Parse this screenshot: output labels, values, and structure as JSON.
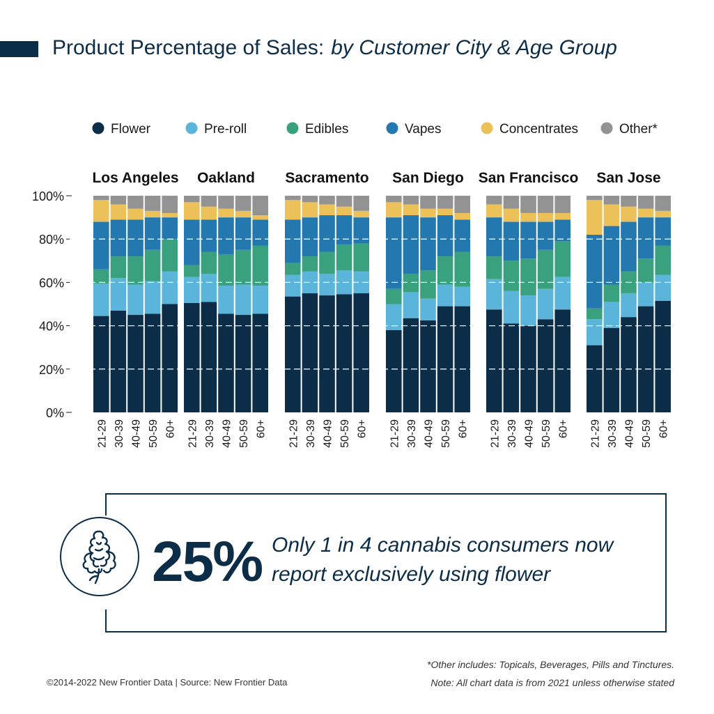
{
  "header": {
    "title": "Product Percentage of Sales:",
    "subtitle": "by Customer City & Age Group"
  },
  "chart_data": {
    "type": "bar",
    "stacked": true,
    "y_ticks": [
      "0%",
      "20%",
      "40%",
      "60%",
      "80%",
      "100%"
    ],
    "ylim": [
      0,
      100
    ],
    "grid": "dashed horizontal lines at 20% intervals",
    "legend_position": "top",
    "series": [
      {
        "name": "Flower",
        "color": "#0c2d48"
      },
      {
        "name": "Pre-roll",
        "color": "#5bb5db"
      },
      {
        "name": "Edibles",
        "color": "#3aa17e"
      },
      {
        "name": "Vapes",
        "color": "#2478b0"
      },
      {
        "name": "Concentrates",
        "color": "#edc15a"
      },
      {
        "name": "Other*",
        "color": "#939393"
      }
    ],
    "groups": [
      {
        "name": "Los Angeles",
        "bars": [
          {
            "label": "21-29",
            "values": [
              44.5,
              15,
              6.5,
              22,
              10,
              2
            ]
          },
          {
            "label": "30-39",
            "values": [
              47,
              15,
              10,
              17,
              7,
              4
            ]
          },
          {
            "label": "40-49",
            "values": [
              45,
              14,
              13,
              17,
              5,
              6
            ]
          },
          {
            "label": "50-59",
            "values": [
              45.5,
              15,
              14.5,
              15,
              3,
              7
            ]
          },
          {
            "label": "60+",
            "values": [
              50,
              15,
              15,
              10,
              2,
              8
            ]
          }
        ]
      },
      {
        "name": "Oakland",
        "bars": [
          {
            "label": "21-29",
            "values": [
              50.5,
              12,
              5.5,
              21,
              8,
              3
            ]
          },
          {
            "label": "30-39",
            "values": [
              51,
              13,
              10,
              15,
              6,
              5
            ]
          },
          {
            "label": "40-49",
            "values": [
              45.5,
              13,
              14.5,
              17,
              4,
              6
            ]
          },
          {
            "label": "50-59",
            "values": [
              45,
              14,
              16,
              15,
              3,
              7
            ]
          },
          {
            "label": "60+",
            "values": [
              45.5,
              13,
              18.5,
              12,
              2,
              9
            ]
          }
        ]
      },
      {
        "name": "Sacramento",
        "bars": [
          {
            "label": "21-29",
            "values": [
              53.5,
              10,
              5.5,
              20,
              9,
              2
            ]
          },
          {
            "label": "30-39",
            "values": [
              55,
              10,
              7,
              18,
              7,
              3
            ]
          },
          {
            "label": "40-49",
            "values": [
              54,
              10,
              10,
              17,
              5,
              4
            ]
          },
          {
            "label": "50-59",
            "values": [
              54.5,
              11,
              12,
              13.5,
              4,
              5
            ]
          },
          {
            "label": "60+",
            "values": [
              55,
              10,
              13,
              12,
              3,
              7
            ]
          }
        ]
      },
      {
        "name": "San Diego",
        "bars": [
          {
            "label": "21-29",
            "values": [
              38,
              12,
              7,
              33,
              7,
              3
            ]
          },
          {
            "label": "30-39",
            "values": [
              43.5,
              12,
              8.5,
              27,
              5,
              4
            ]
          },
          {
            "label": "40-49",
            "values": [
              42.5,
              10,
              13,
              24.5,
              4,
              6
            ]
          },
          {
            "label": "50-59",
            "values": [
              49,
              10,
              13,
              19,
              3,
              6
            ]
          },
          {
            "label": "60+",
            "values": [
              49,
              9,
              16,
              15,
              3,
              8
            ]
          }
        ]
      },
      {
        "name": "San Francisco",
        "bars": [
          {
            "label": "21-29",
            "values": [
              47.5,
              14,
              10.5,
              18,
              6,
              4
            ]
          },
          {
            "label": "30-39",
            "values": [
              41,
              15,
              14,
              18,
              6,
              6
            ]
          },
          {
            "label": "40-49",
            "values": [
              40,
              14,
              17,
              17,
              4,
              8
            ]
          },
          {
            "label": "50-59",
            "values": [
              43,
              14,
              18,
              13,
              4,
              8
            ]
          },
          {
            "label": "60+",
            "values": [
              47.5,
              15,
              16.5,
              10,
              3,
              8
            ]
          }
        ]
      },
      {
        "name": "San Jose",
        "bars": [
          {
            "label": "21-29",
            "values": [
              31,
              12,
              5,
              34,
              16,
              2
            ]
          },
          {
            "label": "30-39",
            "values": [
              39,
              12,
              8,
              27,
              10,
              4
            ]
          },
          {
            "label": "40-49",
            "values": [
              44,
              11,
              10,
              23,
              7,
              5
            ]
          },
          {
            "label": "50-59",
            "values": [
              49,
              11,
              11,
              19,
              4,
              6
            ]
          },
          {
            "label": "60+",
            "values": [
              51.5,
              12,
              13.5,
              13,
              3,
              7
            ]
          }
        ]
      }
    ]
  },
  "callout": {
    "stat": "25%",
    "text_line1": "Only 1 in 4 cannabis consumers now",
    "text_line2": "report exclusively using flower",
    "icon": "cannabis-flower-icon"
  },
  "footnotes": {
    "other_includes": "*Other includes: Topicals, Beverages, Pills and Tinctures.",
    "note": "Note: All chart data is from 2021 unless otherwise stated",
    "copyright": "©2014-2022 New Frontier Data | Source: New Frontier Data"
  }
}
